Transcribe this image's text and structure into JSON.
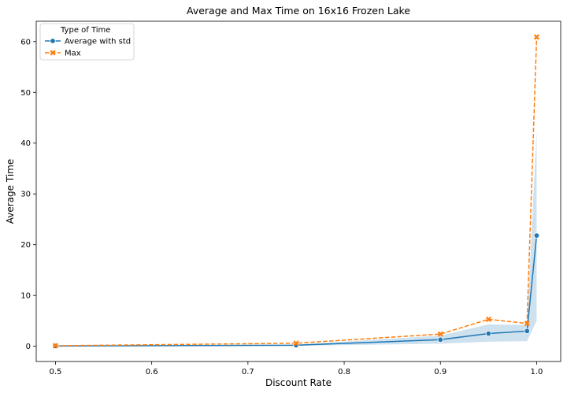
{
  "chart_data": {
    "type": "line",
    "title": "Average and Max Time on 16x16 Frozen Lake",
    "xlabel": "Discount Rate",
    "ylabel": "Average Time",
    "xlim": [
      0.48,
      1.025
    ],
    "ylim": [
      -3,
      64
    ],
    "xticks": [
      0.5,
      0.6,
      0.7,
      0.8,
      0.9,
      1.0
    ],
    "xtick_labels": [
      "0.5",
      "0.6",
      "0.7",
      "0.8",
      "0.9",
      "1.0"
    ],
    "yticks": [
      0,
      10,
      20,
      30,
      40,
      50,
      60
    ],
    "ytick_labels": [
      "0",
      "10",
      "20",
      "30",
      "40",
      "50",
      "60"
    ],
    "x": [
      0.5,
      0.75,
      0.9,
      0.95,
      0.99,
      1.0
    ],
    "grid": false,
    "legend": {
      "title": "Type of Time",
      "placement": "top-left"
    },
    "series": [
      {
        "name": "Average with std",
        "color": "#1f77b4",
        "marker": "circle",
        "linestyle": "solid",
        "values": [
          0.05,
          0.2,
          1.3,
          2.5,
          3.0,
          21.8
        ],
        "band_low": [
          0.0,
          0.1,
          0.5,
          0.9,
          1.0,
          5.0
        ],
        "band_high": [
          0.1,
          0.35,
          2.1,
          4.3,
          4.2,
          42.5
        ]
      },
      {
        "name": "Max",
        "color": "#ff7f0e",
        "marker": "x",
        "linestyle": "dashed",
        "values": [
          0.1,
          0.6,
          2.4,
          5.3,
          4.5,
          60.9
        ]
      }
    ]
  }
}
